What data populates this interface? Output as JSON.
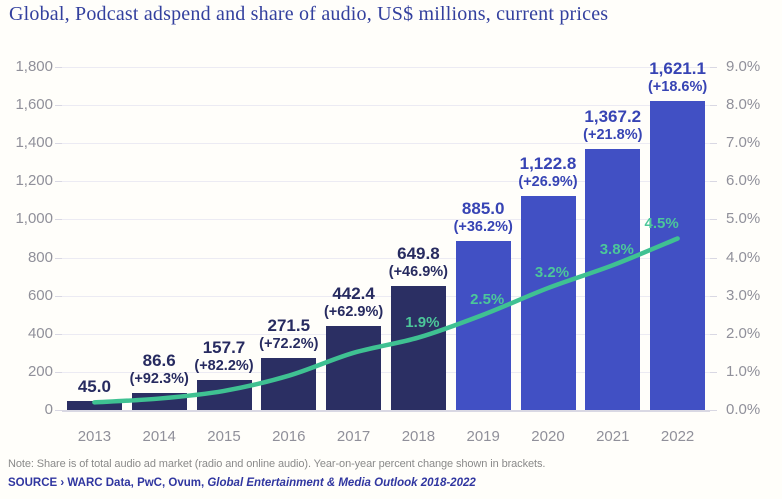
{
  "title": "Global, Podcast adspend and share of audio, US$ millions, current prices",
  "note": "Note: Share is of total audio ad market (radio and online audio). Year-on-year percent change shown in brackets.",
  "source": {
    "prefix": "SOURCE › WARC Data, PwC, Ovum, ",
    "publication": "Global Entertainment & Media Outlook 2018-2022"
  },
  "colors": {
    "background": "#fffefa",
    "title": "#33409e",
    "bar_actual": "#2b2f63",
    "bar_forecast": "#4150c4",
    "label_actual": "#272b60",
    "label_forecast": "#3744b4",
    "line": "#3fc192",
    "line_label": "#4cc79a",
    "axis_text": "#90909a",
    "gridline": "#ecebf3",
    "baseline": "#d9d8e3",
    "note": "#8a8a8a",
    "source": "#3036a0"
  },
  "chart_data": {
    "type": "bar",
    "subtype": "combo-bar-line",
    "title": "Global, Podcast adspend and share of audio, US$ millions, current prices",
    "categories": [
      "2013",
      "2014",
      "2015",
      "2016",
      "2017",
      "2018",
      "2019",
      "2020",
      "2021",
      "2022"
    ],
    "series": [
      {
        "name": "Podcast adspend (US$ millions)",
        "type": "bar",
        "axis": "left",
        "values": [
          45.0,
          86.6,
          157.7,
          271.5,
          442.4,
          649.8,
          885.0,
          1122.8,
          1367.2,
          1621.1
        ],
        "value_labels": [
          "45.0",
          "86.6",
          "157.7",
          "271.5",
          "442.4",
          "649.8",
          "885.0",
          "1,122.8",
          "1,367.2",
          "1,621.1"
        ],
        "growth_labels": [
          "",
          "(+92.3%)",
          "(+82.2%)",
          "(+72.2%)",
          "(+62.9%)",
          "(+46.9%)",
          "(+36.2%)",
          "(+26.9%)",
          "(+21.8%)",
          "(+18.6%)"
        ],
        "segment": [
          "actual",
          "actual",
          "actual",
          "actual",
          "actual",
          "actual",
          "forecast",
          "forecast",
          "forecast",
          "forecast"
        ]
      },
      {
        "name": "Share of audio (%)",
        "type": "line",
        "axis": "right",
        "values": [
          0.2,
          0.3,
          0.5,
          0.9,
          1.5,
          1.9,
          2.5,
          3.2,
          3.8,
          4.5
        ],
        "point_labels": [
          "",
          "",
          "",
          "",
          "",
          "1.9%",
          "2.5%",
          "3.2%",
          "3.8%",
          "4.5%"
        ]
      }
    ],
    "left_axis": {
      "min": 0,
      "max": 1800,
      "step": 200,
      "tick_labels": [
        "0",
        "200",
        "400",
        "600",
        "800",
        "1,000",
        "1,200",
        "1,400",
        "1,600",
        "1,800"
      ]
    },
    "right_axis": {
      "min": 0,
      "max": 9,
      "step": 1,
      "tick_labels": [
        "0.0%",
        "1.0%",
        "2.0%",
        "3.0%",
        "4.0%",
        "5.0%",
        "6.0%",
        "7.0%",
        "8.0%",
        "9.0%"
      ]
    },
    "grid": "horizontal",
    "legend": "none"
  }
}
